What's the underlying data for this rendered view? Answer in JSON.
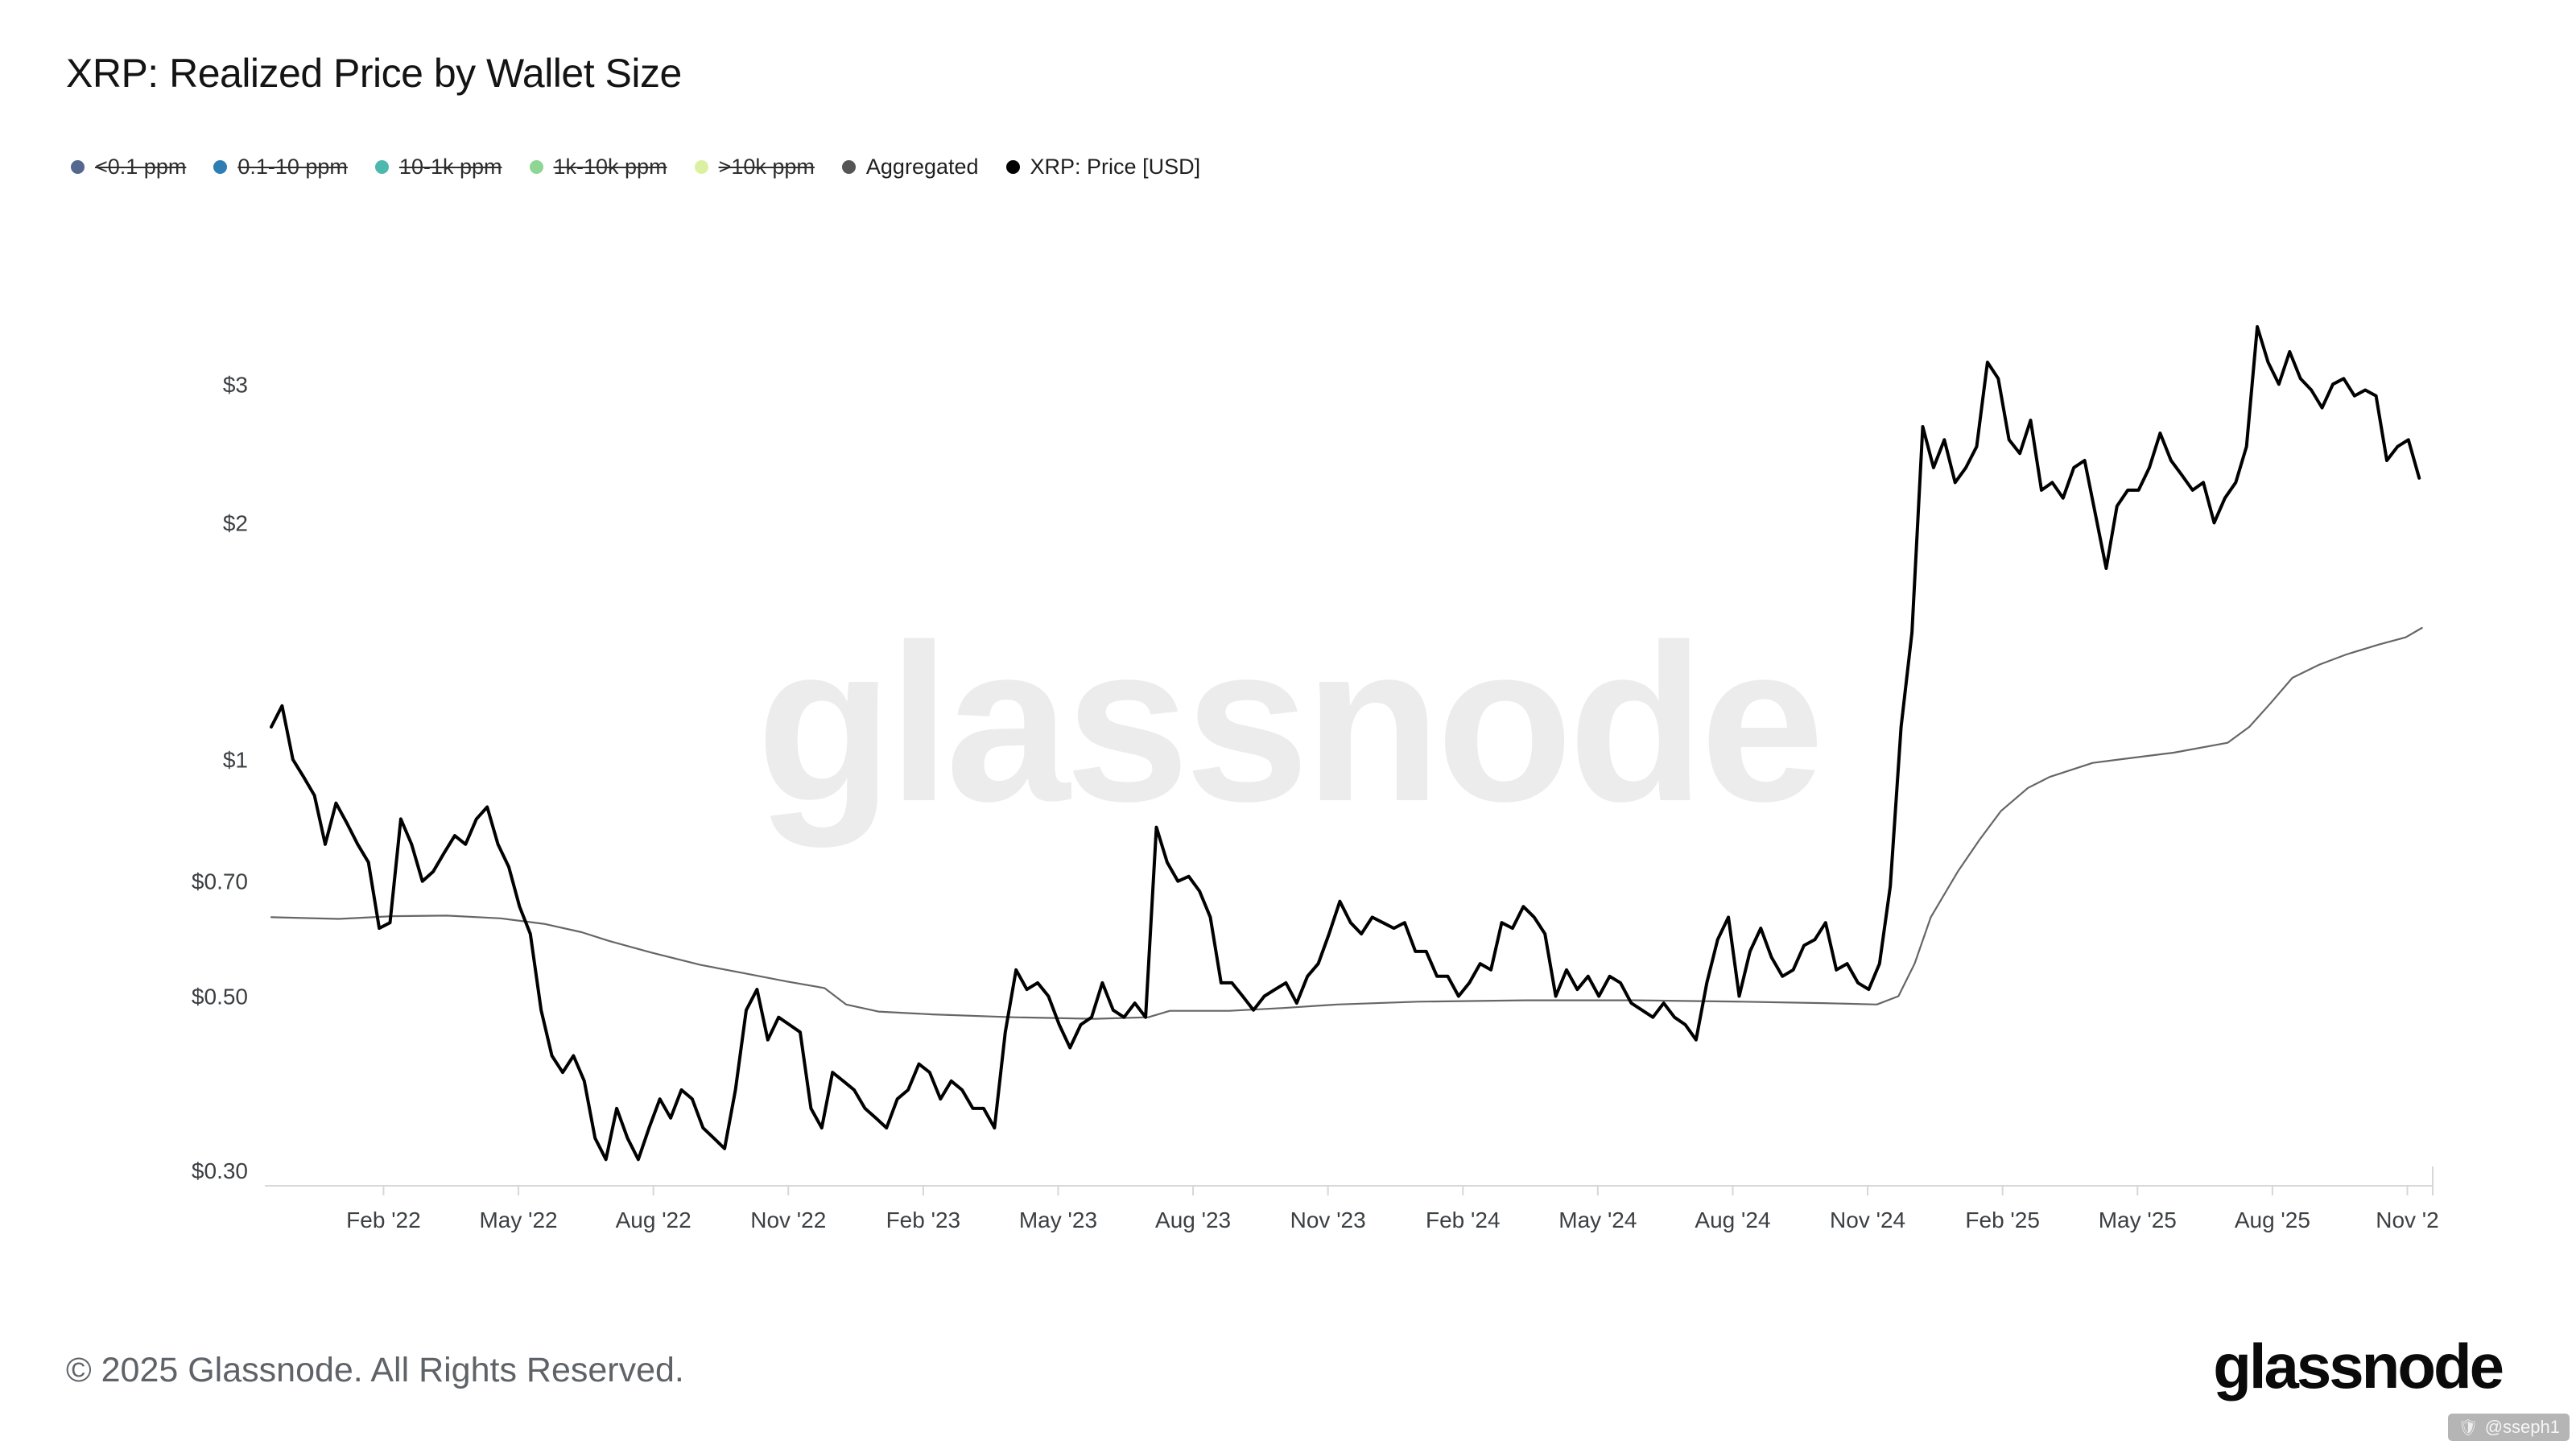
{
  "title": "XRP: Realized Price by Wallet Size",
  "watermark": "glassnode",
  "legend": [
    {
      "label": "<0.1 ppm",
      "color": "#54678f",
      "disabled": true
    },
    {
      "label": "0.1-10 ppm",
      "color": "#2e7eb3",
      "disabled": true
    },
    {
      "label": "10-1k ppm",
      "color": "#4db8ad",
      "disabled": true
    },
    {
      "label": "1k-10k ppm",
      "color": "#8fd694",
      "disabled": true
    },
    {
      "label": ">10k ppm",
      "color": "#dcf0a2",
      "disabled": true
    },
    {
      "label": "Aggregated",
      "color": "#555555",
      "disabled": false
    },
    {
      "label": "XRP: Price [USD]",
      "color": "#000000",
      "disabled": false
    }
  ],
  "footer": {
    "copyright": "© 2025 Glassnode. All Rights Reserved.",
    "logo": "glassnode",
    "badge": "@sseph1"
  },
  "chart_data": {
    "type": "line",
    "title": "XRP: Realized Price by Wallet Size",
    "yscale": "log",
    "grid": false,
    "legend_position": "top-left",
    "xlim": [
      2021.875,
      2025.88
    ],
    "ylim": [
      0.287,
      3.6
    ],
    "y_ticks": [
      {
        "value": 3,
        "label": "$3"
      },
      {
        "value": 2,
        "label": "$2"
      },
      {
        "value": 1,
        "label": "$1"
      },
      {
        "value": 0.7,
        "label": "$0.70"
      },
      {
        "value": 0.5,
        "label": "$0.50"
      },
      {
        "value": 0.3,
        "label": "$0.30"
      }
    ],
    "x_ticks": [
      {
        "value": 2022.083,
        "label": "Feb '22"
      },
      {
        "value": 2022.333,
        "label": "May '22"
      },
      {
        "value": 2022.583,
        "label": "Aug '22"
      },
      {
        "value": 2022.833,
        "label": "Nov '22"
      },
      {
        "value": 2023.083,
        "label": "Feb '23"
      },
      {
        "value": 2023.333,
        "label": "May '23"
      },
      {
        "value": 2023.583,
        "label": "Aug '23"
      },
      {
        "value": 2023.833,
        "label": "Nov '23"
      },
      {
        "value": 2024.083,
        "label": "Feb '24"
      },
      {
        "value": 2024.333,
        "label": "May '24"
      },
      {
        "value": 2024.583,
        "label": "Aug '24"
      },
      {
        "value": 2024.833,
        "label": "Nov '24"
      },
      {
        "value": 2025.083,
        "label": "Feb '25"
      },
      {
        "value": 2025.333,
        "label": "May '25"
      },
      {
        "value": 2025.583,
        "label": "Aug '25"
      },
      {
        "value": 2025.833,
        "label": "Nov '2"
      }
    ],
    "series": [
      {
        "name": "Aggregated",
        "color": "#666666",
        "width": 2.2,
        "points": [
          [
            2021.875,
            0.63
          ],
          [
            2022.0,
            0.627
          ],
          [
            2022.1,
            0.632
          ],
          [
            2022.2,
            0.633
          ],
          [
            2022.3,
            0.628
          ],
          [
            2022.38,
            0.618
          ],
          [
            2022.45,
            0.603
          ],
          [
            2022.5,
            0.588
          ],
          [
            2022.58,
            0.568
          ],
          [
            2022.67,
            0.548
          ],
          [
            2022.75,
            0.535
          ],
          [
            2022.83,
            0.522
          ],
          [
            2022.9,
            0.512
          ],
          [
            2022.94,
            0.488
          ],
          [
            2023.0,
            0.478
          ],
          [
            2023.1,
            0.474
          ],
          [
            2023.25,
            0.47
          ],
          [
            2023.4,
            0.468
          ],
          [
            2023.5,
            0.47
          ],
          [
            2023.54,
            0.479
          ],
          [
            2023.65,
            0.479
          ],
          [
            2023.75,
            0.483
          ],
          [
            2023.85,
            0.488
          ],
          [
            2024.0,
            0.492
          ],
          [
            2024.2,
            0.494
          ],
          [
            2024.4,
            0.494
          ],
          [
            2024.6,
            0.492
          ],
          [
            2024.75,
            0.49
          ],
          [
            2024.85,
            0.488
          ],
          [
            2024.89,
            0.5
          ],
          [
            2024.92,
            0.55
          ],
          [
            2024.95,
            0.63
          ],
          [
            2025.0,
            0.72
          ],
          [
            2025.04,
            0.79
          ],
          [
            2025.08,
            0.86
          ],
          [
            2025.13,
            0.92
          ],
          [
            2025.17,
            0.95
          ],
          [
            2025.21,
            0.97
          ],
          [
            2025.25,
            0.99
          ],
          [
            2025.3,
            1.0
          ],
          [
            2025.4,
            1.02
          ],
          [
            2025.5,
            1.05
          ],
          [
            2025.54,
            1.1
          ],
          [
            2025.58,
            1.18
          ],
          [
            2025.62,
            1.27
          ],
          [
            2025.67,
            1.32
          ],
          [
            2025.72,
            1.36
          ],
          [
            2025.78,
            1.4
          ],
          [
            2025.83,
            1.43
          ],
          [
            2025.86,
            1.47
          ]
        ]
      },
      {
        "name": "XRP: Price [USD]",
        "color": "#000000",
        "width": 4,
        "x0": 2021.875,
        "dx": 0.02,
        "values": [
          1.1,
          1.17,
          1.0,
          0.95,
          0.9,
          0.78,
          0.88,
          0.83,
          0.78,
          0.74,
          0.61,
          0.62,
          0.84,
          0.78,
          0.7,
          0.72,
          0.76,
          0.8,
          0.78,
          0.84,
          0.87,
          0.78,
          0.73,
          0.65,
          0.6,
          0.48,
          0.42,
          0.4,
          0.42,
          0.39,
          0.33,
          0.31,
          0.36,
          0.33,
          0.31,
          0.34,
          0.37,
          0.35,
          0.38,
          0.37,
          0.34,
          0.33,
          0.32,
          0.38,
          0.48,
          0.51,
          0.44,
          0.47,
          0.46,
          0.45,
          0.36,
          0.34,
          0.4,
          0.39,
          0.38,
          0.36,
          0.35,
          0.34,
          0.37,
          0.38,
          0.41,
          0.4,
          0.37,
          0.39,
          0.38,
          0.36,
          0.36,
          0.34,
          0.45,
          0.54,
          0.51,
          0.52,
          0.5,
          0.46,
          0.43,
          0.46,
          0.47,
          0.52,
          0.48,
          0.47,
          0.49,
          0.47,
          0.82,
          0.74,
          0.7,
          0.71,
          0.68,
          0.63,
          0.52,
          0.52,
          0.5,
          0.48,
          0.5,
          0.51,
          0.52,
          0.49,
          0.53,
          0.55,
          0.6,
          0.66,
          0.62,
          0.6,
          0.63,
          0.62,
          0.61,
          0.62,
          0.57,
          0.57,
          0.53,
          0.53,
          0.5,
          0.52,
          0.55,
          0.54,
          0.62,
          0.61,
          0.65,
          0.63,
          0.6,
          0.5,
          0.54,
          0.51,
          0.53,
          0.5,
          0.53,
          0.52,
          0.49,
          0.48,
          0.47,
          0.49,
          0.47,
          0.46,
          0.44,
          0.52,
          0.59,
          0.63,
          0.5,
          0.57,
          0.61,
          0.56,
          0.53,
          0.54,
          0.58,
          0.59,
          0.62,
          0.54,
          0.55,
          0.52,
          0.51,
          0.55,
          0.69,
          1.1,
          1.45,
          2.65,
          2.35,
          2.55,
          2.25,
          2.35,
          2.5,
          3.2,
          3.05,
          2.55,
          2.45,
          2.7,
          2.2,
          2.25,
          2.15,
          2.35,
          2.4,
          2.05,
          1.75,
          2.1,
          2.2,
          2.2,
          2.35,
          2.6,
          2.4,
          2.3,
          2.2,
          2.25,
          2.0,
          2.15,
          2.25,
          2.5,
          3.55,
          3.2,
          3.0,
          3.3,
          3.05,
          2.95,
          2.8,
          3.0,
          3.05,
          2.9,
          2.95,
          2.9,
          2.4,
          2.5,
          2.55,
          2.28
        ]
      }
    ]
  }
}
